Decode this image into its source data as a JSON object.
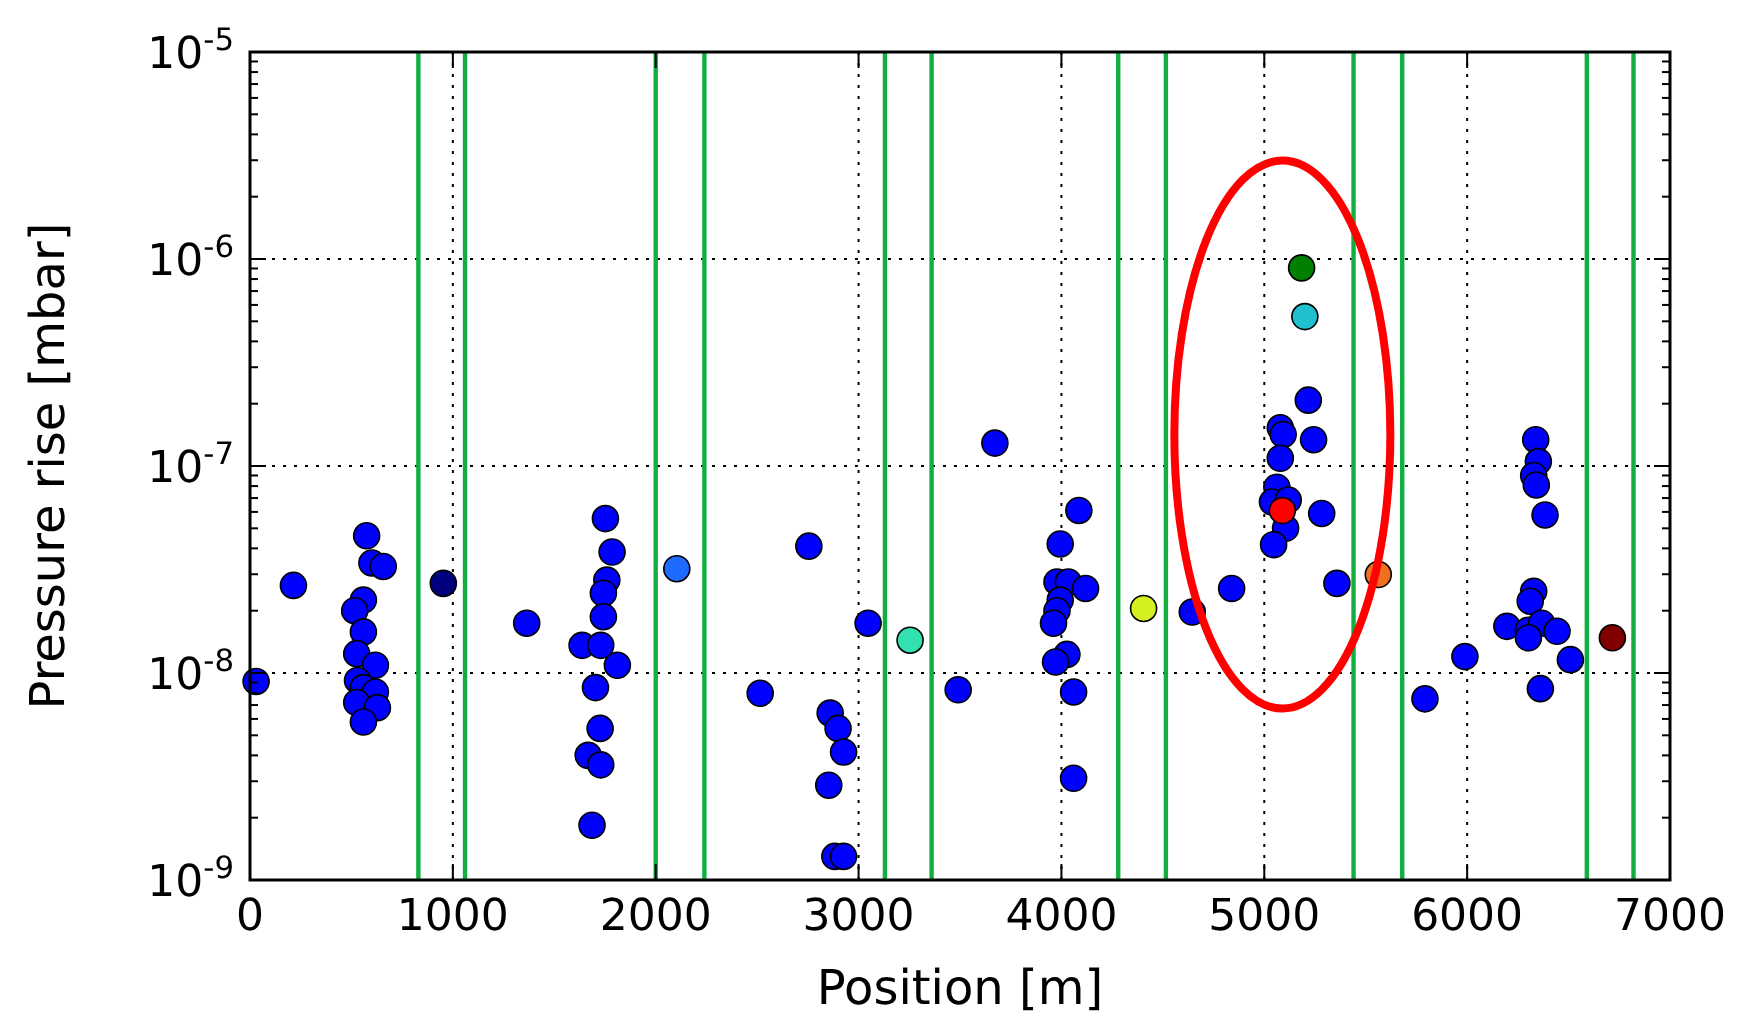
{
  "chart_data": {
    "type": "scatter",
    "xlabel": "Position [m]",
    "ylabel": "Pressure rise [mbar]",
    "xlim": [
      0,
      7000
    ],
    "xticks": [
      0,
      1000,
      2000,
      3000,
      4000,
      5000,
      6000,
      7000
    ],
    "ylim": [
      1e-09,
      1e-05
    ],
    "log": "y",
    "yticks": [
      {
        "value": 1e-09,
        "label": "10$^{-9}$"
      },
      {
        "value": 1e-08,
        "label": "10$^{-8}$"
      },
      {
        "value": 1e-07,
        "label": "10$^{-7}$"
      },
      {
        "value": 1e-06,
        "label": "10$^{-6}$"
      },
      {
        "value": 1e-05,
        "label": "10$^{-5}$"
      }
    ],
    "grid": true,
    "marker": "circle",
    "ref_lines": [
      {
        "axis": "x",
        "value": 830,
        "color": "#10b040"
      },
      {
        "axis": "x",
        "value": 1060,
        "color": "#10b040"
      },
      {
        "axis": "x",
        "value": 2000,
        "color": "#10b040"
      },
      {
        "axis": "x",
        "value": 2240,
        "color": "#10b040"
      },
      {
        "axis": "x",
        "value": 3130,
        "color": "#10b040"
      },
      {
        "axis": "x",
        "value": 3360,
        "color": "#10b040"
      },
      {
        "axis": "x",
        "value": 4280,
        "color": "#10b040"
      },
      {
        "axis": "x",
        "value": 4515,
        "color": "#10b040"
      },
      {
        "axis": "x",
        "value": 5440,
        "color": "#10b040"
      },
      {
        "axis": "x",
        "value": 5680,
        "color": "#10b040"
      },
      {
        "axis": "x",
        "value": 6590,
        "color": "#10b040"
      },
      {
        "axis": "x",
        "value": 6820,
        "color": "#10b040"
      }
    ],
    "series": [
      {
        "x": [
          30,
          214,
          575,
          601,
          657,
          559,
          516,
          559,
          526,
          618,
          530,
          559,
          618,
          526,
          628,
          559,
          953,
          1364,
          1752,
          1785,
          1759,
          1742,
          1742,
          1637,
          1729,
          1811,
          1703,
          1726,
          1667,
          1729,
          1686,
          2104,
          3672,
          4086,
          3994,
          2755,
          3978,
          4034,
          4119,
          3994,
          3978,
          3961,
          4027,
          3971,
          4060,
          4060,
          3047,
          3254,
          2515,
          3491,
          2860,
          2899,
          2926,
          2853,
          2883,
          2926,
          4405,
          5184,
          5200,
          5217,
          5079,
          5093,
          5243,
          5079,
          5062,
          5040,
          5118,
          5105,
          5283,
          5046,
          5358,
          5089,
          5562,
          4839,
          4645,
          5989,
          5792,
          6338,
          6351,
          6328,
          6341,
          6384,
          6328,
          6311,
          6196,
          6302,
          6367,
          6443,
          6302,
          6509,
          6361,
          6716
        ],
        "values": [
          9.1e-09,
          2.65e-08,
          4.6e-08,
          3.4e-08,
          3.27e-08,
          2.25e-08,
          2e-08,
          1.58e-08,
          1.24e-08,
          1.09e-08,
          9.2e-09,
          8.5e-09,
          8.1e-09,
          7.2e-09,
          6.8e-09,
          5.8e-09,
          2.71e-08,
          1.74e-08,
          5.57e-08,
          3.84e-08,
          2.81e-08,
          2.43e-08,
          1.87e-08,
          1.36e-08,
          1.36e-08,
          1.09e-08,
          8.5e-09,
          5.4e-09,
          4e-09,
          3.6e-09,
          1.84e-09,
          3.19e-08,
          1.29e-07,
          6.1e-08,
          4.2e-08,
          4.1e-08,
          2.75e-08,
          2.75e-08,
          2.56e-08,
          2.25e-08,
          2e-08,
          1.74e-08,
          1.23e-08,
          1.13e-08,
          8.1e-09,
          3.1e-09,
          1.74e-08,
          1.44e-08,
          7.98e-09,
          8.3e-09,
          6.4e-09,
          5.4e-09,
          4.15e-09,
          2.87e-09,
          1.3e-09,
          1.3e-09,
          2.05e-08,
          9.06e-07,
          5.27e-07,
          2.08e-07,
          1.53e-07,
          1.42e-07,
          1.34e-07,
          1.09e-07,
          7.9e-08,
          6.7e-08,
          6.85e-08,
          5e-08,
          5.9e-08,
          4.17e-08,
          2.71e-08,
          6.09e-08,
          2.99e-08,
          2.56e-08,
          1.97e-08,
          1.2e-08,
          7.5e-09,
          1.34e-07,
          1.05e-07,
          9e-08,
          8.1e-08,
          5.8e-08,
          2.48e-08,
          2.22e-08,
          1.68e-08,
          1.61e-08,
          1.74e-08,
          1.59e-08,
          1.48e-08,
          1.16e-08,
          8.4e-09,
          1.48e-08
        ],
        "colors": [
          "#0000ff",
          "#0000ff",
          "#0000ff",
          "#0000ff",
          "#0000ff",
          "#0000ff",
          "#0000ff",
          "#0000ff",
          "#0000ff",
          "#0000ff",
          "#0000ff",
          "#0000ff",
          "#0000ff",
          "#0000ff",
          "#0000ff",
          "#0000ff",
          "#00007f",
          "#0000ff",
          "#0000ff",
          "#0000ff",
          "#0000ff",
          "#0000ff",
          "#0000ff",
          "#0000ff",
          "#0000ff",
          "#0000ff",
          "#0000ff",
          "#0000ff",
          "#0000ff",
          "#0000ff",
          "#0000ff",
          "#1e6cff",
          "#0000ff",
          "#0000ff",
          "#0000ff",
          "#0000ff",
          "#0000ff",
          "#0000ff",
          "#0000ff",
          "#0000ff",
          "#0000ff",
          "#0000ff",
          "#0000ff",
          "#0000ff",
          "#0000ff",
          "#0000ff",
          "#0000ff",
          "#33e0b0",
          "#0000ff",
          "#0000ff",
          "#0000ff",
          "#0000ff",
          "#0000ff",
          "#0000ff",
          "#0000ff",
          "#0000ff",
          "#d4f020",
          "#007f00",
          "#20c0d0",
          "#0000ff",
          "#0000ff",
          "#0000ff",
          "#0000ff",
          "#0000ff",
          "#0000ff",
          "#0000ff",
          "#0000ff",
          "#0000ff",
          "#0000ff",
          "#0000ff",
          "#0000ff",
          "#ff0000",
          "#f07020",
          "#0000ff",
          "#0000ff",
          "#0000ff",
          "#0000ff",
          "#0000ff",
          "#0000ff",
          "#0000ff",
          "#0000ff",
          "#0000ff",
          "#0000ff",
          "#0000ff",
          "#0000ff",
          "#0000ff",
          "#0000ff",
          "#0000ff",
          "#0000ff",
          "#0000ff",
          "#0000ff",
          "#800000"
        ]
      }
    ]
  }
}
